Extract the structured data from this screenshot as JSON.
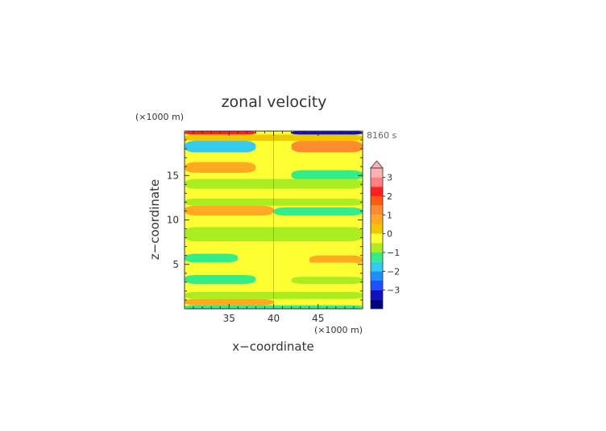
{
  "chart_data": {
    "type": "heatmap",
    "title": "zonal velocity",
    "time_label": "8160 s",
    "xlabel": "x−coordinate",
    "ylabel": "z−coordinate",
    "x_unit": "(×1000 m)",
    "z_unit": "(×1000 m)",
    "xlim": [
      30,
      50
    ],
    "ylim": [
      0,
      20
    ],
    "x_ticks": [
      35,
      40,
      45
    ],
    "y_ticks": [
      5,
      10,
      15
    ],
    "colorbar": {
      "tick_labels": [
        "3",
        "2",
        "1",
        "0",
        "−1",
        "−2",
        "−3"
      ],
      "tick_values": [
        3,
        2,
        1,
        0,
        -1,
        -2,
        -3
      ],
      "levels_top_to_bottom": [
        ">3.5",
        "3–3.5",
        "2.5–3",
        "2–2.5",
        "1.5–2",
        "1–1.5",
        "0.5–1",
        "0–0.5",
        "−0.5–0",
        "−1–−0.5",
        "−1.5–−1",
        "−2–−1.5",
        "−2.5–−2",
        "−3–−2.5",
        "<−3"
      ],
      "colors_top_to_bottom": [
        "#ffb0b0",
        "#ff8080",
        "#ff2020",
        "#ff5a10",
        "#ff8c30",
        "#ffaa20",
        "#f0c800",
        "#ffff33",
        "#aaee22",
        "#33ee88",
        "#33ccee",
        "#1f8fff",
        "#1f4fff",
        "#1010c0",
        "#000080"
      ],
      "extend_top_arrow": true
    },
    "bands": [
      {
        "z": [
          19.6,
          20.0
        ],
        "x": [
          30,
          38
        ],
        "level": 2.5
      },
      {
        "z": [
          19.6,
          20.0
        ],
        "x": [
          42,
          50
        ],
        "level": -3
      },
      {
        "z": [
          18.9,
          19.6
        ],
        "x": [
          30,
          50
        ],
        "level": 0.3
      },
      {
        "z": [
          17.6,
          18.9
        ],
        "x": [
          30,
          38
        ],
        "level": -1.5
      },
      {
        "z": [
          17.6,
          18.9
        ],
        "x": [
          42,
          50
        ],
        "level": 1.5
      },
      {
        "z": [
          16.5,
          17.6
        ],
        "x": [
          30,
          50
        ],
        "level": 0.2
      },
      {
        "z": [
          15.3,
          16.5
        ],
        "x": [
          30,
          38
        ],
        "level": 0.8
      },
      {
        "z": [
          14.5,
          15.6
        ],
        "x": [
          42,
          50
        ],
        "level": -0.8
      },
      {
        "z": [
          13.5,
          14.6
        ],
        "x": [
          30,
          50
        ],
        "level": -0.3
      },
      {
        "z": [
          12.4,
          13.5
        ],
        "x": [
          30,
          50
        ],
        "level": 0.2
      },
      {
        "z": [
          11.6,
          12.4
        ],
        "x": [
          30,
          50
        ],
        "level": -0.3
      },
      {
        "z": [
          10.5,
          11.6
        ],
        "x": [
          30,
          40
        ],
        "level": 0.8
      },
      {
        "z": [
          10.5,
          11.4
        ],
        "x": [
          40,
          50
        ],
        "level": -0.8
      },
      {
        "z": [
          9.2,
          10.5
        ],
        "x": [
          30,
          50
        ],
        "level": 0.2
      },
      {
        "z": [
          7.6,
          9.2
        ],
        "x": [
          30,
          50
        ],
        "level": -0.3
      },
      {
        "z": [
          6.2,
          7.6
        ],
        "x": [
          30,
          50
        ],
        "level": 0.2
      },
      {
        "z": [
          5.2,
          6.2
        ],
        "x": [
          30,
          36
        ],
        "level": -0.8
      },
      {
        "z": [
          5.0,
          6.0
        ],
        "x": [
          44,
          50
        ],
        "level": 0.8
      },
      {
        "z": [
          3.8,
          5.2
        ],
        "x": [
          30,
          50
        ],
        "level": 0.2
      },
      {
        "z": [
          2.8,
          3.8
        ],
        "x": [
          30,
          38
        ],
        "level": -0.8
      },
      {
        "z": [
          2.8,
          3.6
        ],
        "x": [
          42,
          50
        ],
        "level": -0.3
      },
      {
        "z": [
          1.9,
          2.8
        ],
        "x": [
          30,
          50
        ],
        "level": 0.2
      },
      {
        "z": [
          1.1,
          1.9
        ],
        "x": [
          30,
          50
        ],
        "level": -0.3
      },
      {
        "z": [
          0.4,
          1.1
        ],
        "x": [
          30,
          40
        ],
        "level": 0.8
      },
      {
        "z": [
          0.4,
          1.1
        ],
        "x": [
          40,
          50
        ],
        "level": 0.2
      },
      {
        "z": [
          0.0,
          0.4
        ],
        "x": [
          30,
          50
        ],
        "level": -0.8
      }
    ]
  }
}
